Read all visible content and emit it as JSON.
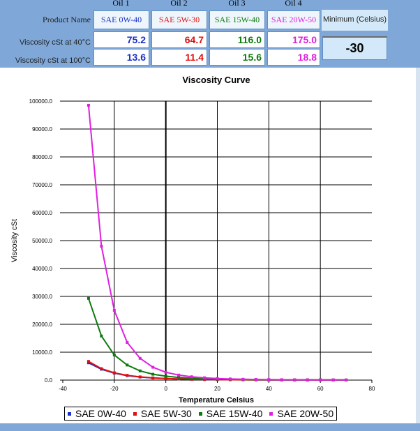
{
  "table": {
    "columns": [
      "Oil 1",
      "Oil 2",
      "Oil 3",
      "Oil 4"
    ],
    "product_label": "Product Name",
    "row40_label": "Viscosity cSt at 40°C",
    "row100_label": "Viscosity cSt at 100°C",
    "products": [
      "SAE 0W-40",
      "SAE 5W-30",
      "SAE 15W-40",
      "SAE 20W-50"
    ],
    "visc40": [
      "75.2",
      "64.7",
      "116.0",
      "175.0"
    ],
    "visc100": [
      "13.6",
      "11.4",
      "15.6",
      "18.8"
    ],
    "colors": [
      "#1a2fc8",
      "#e01010",
      "#0d7a0d",
      "#e020e0"
    ],
    "minimum_label": "Minimum (Celsius)",
    "minimum_value": "-30"
  },
  "chart_data": {
    "type": "line",
    "title": "Viscosity Curve",
    "xlabel": "Temperature Celsius",
    "ylabel": "Viscosity cSt",
    "xlim": [
      -40,
      80
    ],
    "ylim": [
      0,
      100000
    ],
    "xticks": [
      "-40",
      "-20",
      "0",
      "20",
      "40",
      "60",
      "80"
    ],
    "yticks": [
      "0.0",
      "10000.0",
      "20000.0",
      "30000.0",
      "40000.0",
      "50000.0",
      "60000.0",
      "70000.0",
      "80000.0",
      "90000.0",
      "100000.0"
    ],
    "grid": true,
    "legend_position": "bottom",
    "x": [
      -30,
      -25,
      -20,
      -15,
      -10,
      -5,
      0,
      5,
      10,
      15,
      20,
      25,
      30,
      35,
      40,
      45,
      50,
      55,
      60,
      65,
      70
    ],
    "series": [
      {
        "name": "SAE 0W-40",
        "color": "#1a2fc8",
        "values": [
          6200,
          3900,
          2500,
          1600,
          1100,
          760,
          540,
          400,
          300,
          230,
          180,
          140,
          115,
          95,
          75,
          62,
          52,
          44,
          38,
          33,
          28
        ]
      },
      {
        "name": "SAE 5W-30",
        "color": "#e01010",
        "values": [
          6700,
          4100,
          2600,
          1700,
          1150,
          780,
          550,
          400,
          290,
          220,
          170,
          135,
          105,
          85,
          65,
          54,
          45,
          38,
          32,
          28,
          24
        ]
      },
      {
        "name": "SAE 15W-40",
        "color": "#0d7a0d",
        "values": [
          29300,
          15800,
          9000,
          5400,
          3300,
          2100,
          1400,
          960,
          670,
          480,
          350,
          265,
          200,
          155,
          116,
          92,
          74,
          60,
          50,
          42,
          36
        ]
      },
      {
        "name": "SAE 20W-50",
        "color": "#e020e0",
        "values": [
          98500,
          48000,
          25000,
          13500,
          7800,
          4600,
          2800,
          1800,
          1200,
          820,
          570,
          410,
          300,
          225,
          175,
          135,
          108,
          86,
          70,
          58,
          48
        ]
      }
    ]
  }
}
